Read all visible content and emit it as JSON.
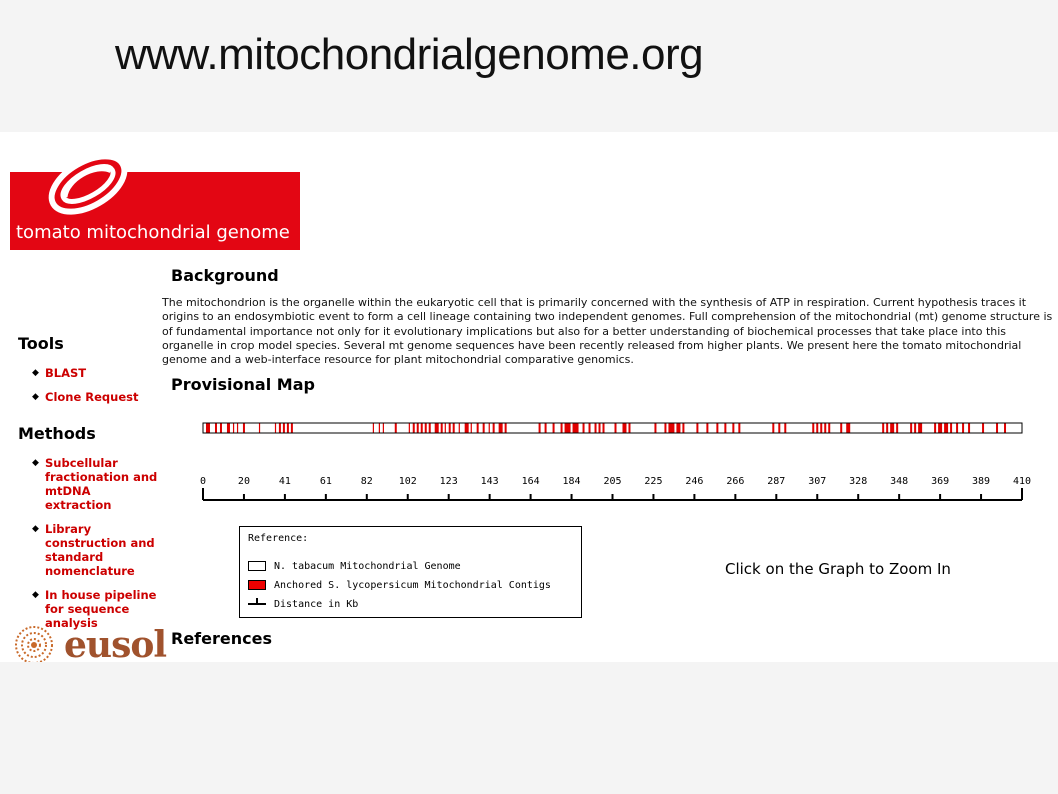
{
  "slide": {
    "title": "www.mitochondrialgenome.org"
  },
  "logo": {
    "text": "tomato mitochondrial genome"
  },
  "sidebar": {
    "tools_heading": "Tools",
    "tools": [
      {
        "label": "BLAST"
      },
      {
        "label": "Clone Request"
      }
    ],
    "methods_heading": "Methods",
    "methods": [
      {
        "label": "Subcellular fractionation and mtDNA extraction"
      },
      {
        "label": "Library construction and standard nomenclature"
      },
      {
        "label": "In house pipeline for sequence analysis"
      }
    ]
  },
  "main": {
    "background_heading": "Background",
    "background_text": "The mitochondrion is the organelle within the eukaryotic cell that is primarily concerned with the synthesis of ATP in respiration. Current hypothesis traces it origins to an endosymbiotic event to form a cell lineage containing two independent genomes. Full comprehension of the mitochondrial (mt) genome structure is of fundamental importance not only for it evolutionary implications but also for a better understanding of biochemical processes that take place into this organelle in crop model species. Several mt genome sequences have been recently released from higher plants. We present here the tomato mitochondrial genome and a web-interface resource for plant mitochondrial comparative genomics.",
    "map_heading": "Provisional Map",
    "references_heading": "References",
    "zoom_hint": "Click on the Graph to Zoom In"
  },
  "map": {
    "axis_ticks": [
      "0",
      "20",
      "41",
      "61",
      "82",
      "102",
      "123",
      "143",
      "164",
      "184",
      "205",
      "225",
      "246",
      "266",
      "287",
      "307",
      "328",
      "348",
      "369",
      "389",
      "410"
    ],
    "genome_length_kb": 410,
    "contig_color": "#e00000",
    "contigs_kb": [
      [
        1.5,
        3.5
      ],
      [
        6,
        7
      ],
      [
        8.5,
        9.5
      ],
      [
        12,
        13.5
      ],
      [
        15,
        15.5
      ],
      [
        17,
        17.5
      ],
      [
        20,
        21
      ],
      [
        28,
        28.5
      ],
      [
        36,
        36.5
      ],
      [
        38,
        39
      ],
      [
        40,
        41
      ],
      [
        42,
        43
      ],
      [
        44,
        45
      ],
      [
        85,
        85.5
      ],
      [
        88,
        88.5
      ],
      [
        90,
        90.5
      ],
      [
        96,
        97
      ],
      [
        103,
        103.5
      ],
      [
        105,
        106
      ],
      [
        107,
        108
      ],
      [
        109,
        110
      ],
      [
        111,
        112
      ],
      [
        113,
        114
      ],
      [
        116,
        118
      ],
      [
        119,
        120
      ],
      [
        121,
        121.5
      ],
      [
        123,
        124
      ],
      [
        125,
        126
      ],
      [
        128,
        128.5
      ],
      [
        131,
        133
      ],
      [
        134,
        134.5
      ],
      [
        137,
        138
      ],
      [
        140,
        141
      ],
      [
        143,
        143.5
      ],
      [
        145,
        146
      ],
      [
        148,
        150
      ],
      [
        151,
        152
      ],
      [
        168,
        169
      ],
      [
        171,
        172
      ],
      [
        175,
        176
      ],
      [
        179,
        180
      ],
      [
        181,
        184
      ],
      [
        185,
        188
      ],
      [
        190,
        191
      ],
      [
        193,
        194
      ],
      [
        196,
        197
      ],
      [
        198,
        199
      ],
      [
        200,
        201
      ],
      [
        206,
        207
      ],
      [
        210,
        212
      ],
      [
        213,
        214
      ],
      [
        226,
        227
      ],
      [
        231,
        232
      ],
      [
        233,
        236
      ],
      [
        237,
        239
      ],
      [
        240,
        241
      ],
      [
        247,
        248
      ],
      [
        252,
        253
      ],
      [
        257,
        258
      ],
      [
        261,
        262
      ],
      [
        265,
        266
      ],
      [
        268,
        269
      ],
      [
        285,
        286
      ],
      [
        288,
        289
      ],
      [
        291,
        292
      ],
      [
        305,
        306
      ],
      [
        307,
        308
      ],
      [
        309,
        310
      ],
      [
        311,
        312
      ],
      [
        313,
        314
      ],
      [
        319,
        320
      ],
      [
        322,
        324
      ],
      [
        340,
        341
      ],
      [
        342,
        343
      ],
      [
        344,
        346
      ],
      [
        347,
        348
      ],
      [
        354,
        355
      ],
      [
        356,
        357
      ],
      [
        358,
        360
      ],
      [
        366,
        367
      ],
      [
        368,
        370
      ],
      [
        371,
        373
      ],
      [
        374,
        375
      ],
      [
        377,
        378
      ],
      [
        380,
        381
      ],
      [
        383,
        384
      ],
      [
        390,
        391
      ],
      [
        397,
        398
      ],
      [
        401,
        402
      ]
    ]
  },
  "reference": {
    "title": "Reference:",
    "items": [
      {
        "label": "N. tabacum Mitochondrial Genome"
      },
      {
        "label": "Anchored S. lycopersicum Mitochondrial Contigs"
      },
      {
        "label": "Distance in Kb"
      }
    ]
  },
  "eusol": {
    "text": "eusol"
  }
}
